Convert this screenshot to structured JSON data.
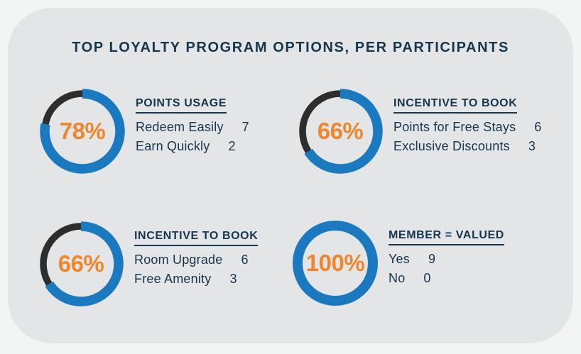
{
  "title": "TOP LOYALTY PROGRAM OPTIONS, PER PARTICIPANTS",
  "colors": {
    "page_bg": "#f3f4f4",
    "card_bg": "#e4e5e7",
    "navy": "#16364d",
    "blue": "#1b7abf",
    "orange": "#f0862c",
    "dark": "#2d2d2d"
  },
  "chart_data": [
    {
      "type": "pie",
      "variant": "donut",
      "title": "POINTS USAGE",
      "percent": 78,
      "percent_label": "78%",
      "segments": [
        {
          "label": "filled",
          "value": 78,
          "color": "#1b7abf"
        },
        {
          "label": "remainder",
          "value": 22,
          "color": "#2d2d2d"
        }
      ],
      "items": [
        {
          "label": "Redeem Easily",
          "value": 7
        },
        {
          "label": "Earn Quickly",
          "value": 2
        }
      ]
    },
    {
      "type": "pie",
      "variant": "donut",
      "title": "INCENTIVE TO BOOK",
      "percent": 66,
      "percent_label": "66%",
      "segments": [
        {
          "label": "filled",
          "value": 66,
          "color": "#1b7abf"
        },
        {
          "label": "remainder",
          "value": 34,
          "color": "#2d2d2d"
        }
      ],
      "items": [
        {
          "label": "Points for Free Stays",
          "value": 6
        },
        {
          "label": "Exclusive Discounts",
          "value": 3
        }
      ]
    },
    {
      "type": "pie",
      "variant": "donut",
      "title": "INCENTIVE TO BOOK",
      "percent": 66,
      "percent_label": "66%",
      "segments": [
        {
          "label": "filled",
          "value": 66,
          "color": "#1b7abf"
        },
        {
          "label": "remainder",
          "value": 34,
          "color": "#2d2d2d"
        }
      ],
      "items": [
        {
          "label": "Room Upgrade",
          "value": 6
        },
        {
          "label": "Free Amenity",
          "value": 3
        }
      ]
    },
    {
      "type": "pie",
      "variant": "donut",
      "title": "MEMBER = VALUED",
      "percent": 100,
      "percent_label": "100%",
      "segments": [
        {
          "label": "filled",
          "value": 100,
          "color": "#1b7abf"
        },
        {
          "label": "remainder",
          "value": 0,
          "color": "#2d2d2d"
        }
      ],
      "items": [
        {
          "label": "Yes",
          "value": 9
        },
        {
          "label": "No",
          "value": 0
        }
      ]
    }
  ]
}
